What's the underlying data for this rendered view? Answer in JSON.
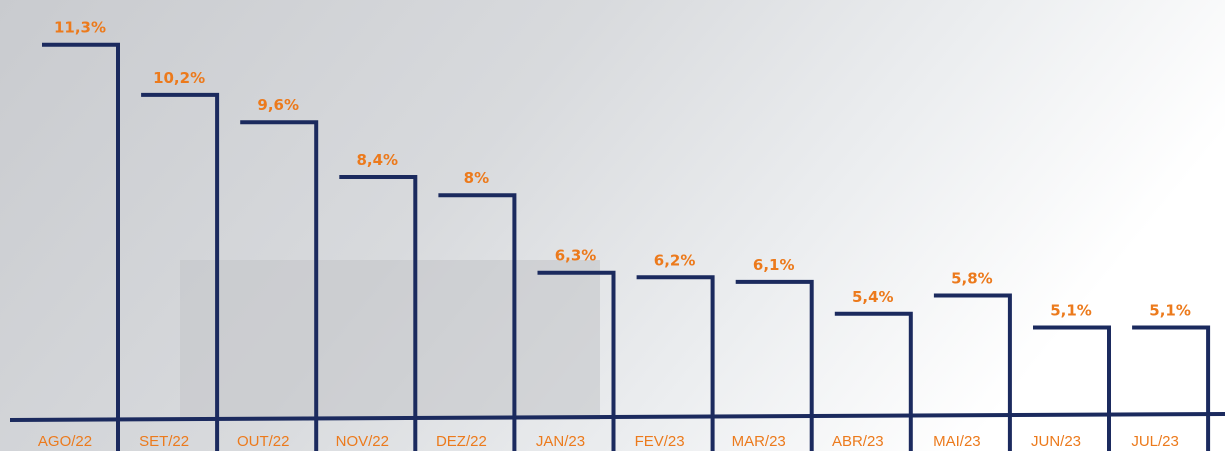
{
  "chart_data": {
    "type": "step-bar",
    "categories": [
      "AGO/22",
      "SET/22",
      "OUT/22",
      "NOV/22",
      "DEZ/22",
      "JAN/23",
      "FEV/23",
      "MAR/23",
      "ABR/23",
      "MAI/23",
      "JUN/23",
      "JUL/23"
    ],
    "values": [
      11.3,
      10.2,
      9.6,
      8.4,
      8,
      6.3,
      6.2,
      6.1,
      5.4,
      5.8,
      5.1,
      5.1
    ],
    "value_labels": [
      "11,3%",
      "10,2%",
      "9,6%",
      "8,4%",
      "8%",
      "6,3%",
      "6,2%",
      "6,1%",
      "5,4%",
      "5,8%",
      "5,1%",
      "5,1%"
    ],
    "color": "#1b2a5e",
    "label_color": "#ec7a1c"
  }
}
